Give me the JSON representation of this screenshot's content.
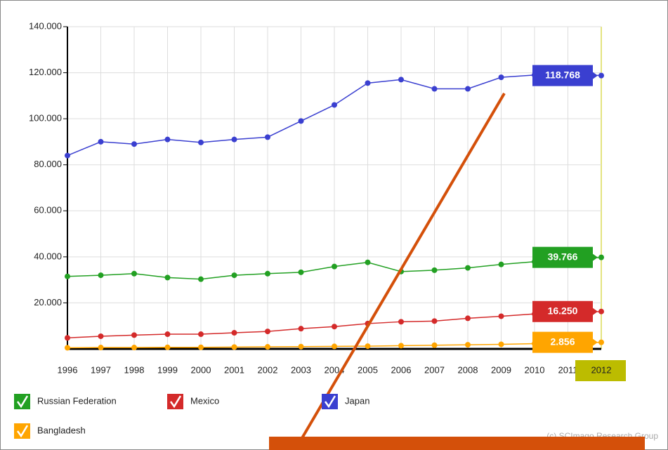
{
  "chart_data": {
    "type": "line",
    "categories": [
      "1996",
      "1997",
      "1998",
      "1999",
      "2000",
      "2001",
      "2002",
      "2003",
      "2004",
      "2005",
      "2006",
      "2007",
      "2008",
      "2009",
      "2010",
      "2011",
      "2012"
    ],
    "ylim": [
      0,
      140000
    ],
    "yticks": [
      {
        "value": 20000,
        "label": "20.000"
      },
      {
        "value": 40000,
        "label": "40.000"
      },
      {
        "value": 60000,
        "label": "60.000"
      },
      {
        "value": 80000,
        "label": "80.000"
      },
      {
        "value": 100000,
        "label": "100.000"
      },
      {
        "value": 120000,
        "label": "120.000"
      },
      {
        "value": 140000,
        "label": "140.000"
      }
    ],
    "grid": true,
    "series": [
      {
        "name": "Russian Federation",
        "color": "#22a022",
        "values": [
          31500,
          32000,
          32700,
          31000,
          30300,
          32000,
          32700,
          33300,
          35800,
          37600,
          33600,
          34200,
          35200,
          36700,
          37900,
          38800,
          39766
        ],
        "value_labels": [
          null,
          null,
          null,
          null,
          null,
          null,
          null,
          null,
          null,
          null,
          null,
          null,
          null,
          null,
          null,
          null,
          "39.766"
        ]
      },
      {
        "name": "Mexico",
        "color": "#d42a2a",
        "values": [
          4800,
          5500,
          6000,
          6400,
          6400,
          7000,
          7600,
          8800,
          9700,
          11000,
          11800,
          12100,
          13300,
          14200,
          15200,
          15800,
          16250
        ],
        "value_labels": [
          null,
          null,
          null,
          null,
          null,
          null,
          null,
          null,
          null,
          null,
          null,
          null,
          null,
          null,
          null,
          null,
          "16.250"
        ]
      },
      {
        "name": "Japan",
        "color": "#3a3fd0",
        "values": [
          84000,
          90000,
          89000,
          91000,
          89700,
          91000,
          92000,
          99000,
          106000,
          115500,
          117000,
          113000,
          113000,
          118000,
          119000,
          119500,
          118768
        ],
        "value_labels": [
          null,
          null,
          null,
          null,
          null,
          null,
          null,
          null,
          null,
          null,
          null,
          null,
          null,
          null,
          null,
          null,
          "118.768"
        ]
      },
      {
        "name": "Bangladesh",
        "color": "#ffa500",
        "values": [
          500,
          600,
          600,
          700,
          700,
          800,
          900,
          1000,
          1100,
          1200,
          1400,
          1600,
          1800,
          2000,
          2300,
          2600,
          2856
        ],
        "value_labels": [
          null,
          null,
          null,
          null,
          null,
          null,
          null,
          null,
          null,
          null,
          null,
          null,
          null,
          null,
          null,
          null,
          "2.856"
        ]
      }
    ],
    "footer": "(c) SCImago Research Group"
  }
}
